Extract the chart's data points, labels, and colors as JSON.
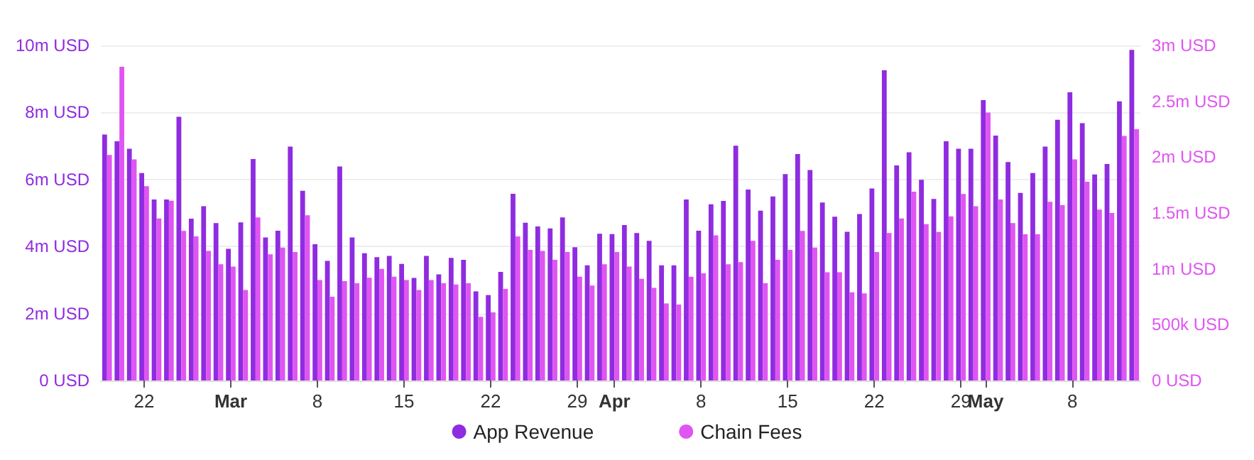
{
  "chart_data": {
    "type": "bar",
    "categories": [
      null,
      null,
      null,
      "22",
      null,
      null,
      null,
      null,
      null,
      null,
      "Mar",
      null,
      null,
      null,
      null,
      null,
      null,
      "8",
      null,
      null,
      null,
      null,
      null,
      null,
      "15",
      null,
      null,
      null,
      null,
      null,
      null,
      "22",
      null,
      null,
      null,
      null,
      null,
      null,
      "29",
      null,
      null,
      "Apr",
      null,
      null,
      null,
      null,
      null,
      null,
      "8",
      null,
      null,
      null,
      null,
      null,
      null,
      "15",
      null,
      null,
      null,
      null,
      null,
      null,
      "22",
      null,
      null,
      null,
      null,
      null,
      null,
      "29",
      null,
      "May",
      null,
      null,
      null,
      null,
      null,
      null,
      "8",
      null,
      null,
      null,
      null,
      null
    ],
    "series": [
      {
        "name": "App Revenue",
        "color": "#8f2ce0",
        "values": [
          7.34,
          7.14,
          6.92,
          6.19,
          5.4,
          5.4,
          7.87,
          4.83,
          5.2,
          4.7,
          3.93,
          4.72,
          6.61,
          4.27,
          4.47,
          6.98,
          5.66,
          4.07,
          3.57,
          6.39,
          4.27,
          3.8,
          3.68,
          3.72,
          3.48,
          3.06,
          3.72,
          3.17,
          3.66,
          3.6,
          2.66,
          2.55,
          3.24,
          5.57,
          4.71,
          4.6,
          4.54,
          4.87,
          3.98,
          3.44,
          4.38,
          4.37,
          4.64,
          4.4,
          4.17,
          3.44,
          3.44,
          5.4,
          4.47,
          5.26,
          5.36,
          7.01,
          5.7,
          5.07,
          5.49,
          6.16,
          6.76,
          6.28,
          5.31,
          4.89,
          4.44,
          4.97,
          5.73,
          9.26,
          6.42,
          6.81,
          5.99,
          5.42,
          7.14,
          6.92,
          6.92,
          8.37,
          7.31,
          6.52,
          5.6,
          6.19,
          6.98,
          7.78,
          8.6,
          7.68,
          6.15,
          6.46,
          8.33,
          9.87
        ]
      },
      {
        "name": "Chain Fees",
        "color": "#e055f2",
        "axis": "y2",
        "values": [
          2020000,
          2810000,
          1980000,
          1740000,
          1450000,
          1610000,
          1340000,
          1290000,
          1160000,
          1040000,
          1020000,
          810000,
          1460000,
          1130000,
          1190000,
          1150000,
          1480000,
          900000,
          750000,
          890000,
          870000,
          920000,
          1000000,
          930000,
          900000,
          810000,
          900000,
          870000,
          860000,
          870000,
          570000,
          610000,
          820000,
          1290000,
          1170000,
          1160000,
          1080000,
          1150000,
          930000,
          850000,
          1040000,
          1150000,
          1020000,
          910000,
          830000,
          690000,
          680000,
          930000,
          960000,
          1300000,
          1040000,
          1060000,
          1250000,
          870000,
          1080000,
          1170000,
          1340000,
          1190000,
          970000,
          970000,
          790000,
          780000,
          1150000,
          1320000,
          1450000,
          1690000,
          1400000,
          1330000,
          1470000,
          1670000,
          1560000,
          2400000,
          1620000,
          1410000,
          1310000,
          1310000,
          1600000,
          1570000,
          1980000,
          1780000,
          1530000,
          1500000,
          2190000,
          2250000
        ]
      }
    ],
    "ylim": [
      0,
      10
    ],
    "yticks": [
      {
        "value": 0,
        "label": "0 USD"
      },
      {
        "value": 2,
        "label": "2m USD"
      },
      {
        "value": 4,
        "label": "4m USD"
      },
      {
        "value": 6,
        "label": "6m USD"
      },
      {
        "value": 8,
        "label": "8m USD"
      },
      {
        "value": 10,
        "label": "10m USD"
      }
    ],
    "y2lim": [
      0,
      3000000
    ],
    "y2ticks": [
      {
        "value": 0,
        "label": "0 USD"
      },
      {
        "value": 500000,
        "label": "500k USD"
      },
      {
        "value": 1000000,
        "label": "1m USD"
      },
      {
        "value": 1500000,
        "label": "1.5m USD"
      },
      {
        "value": 2000000,
        "label": "2m USD"
      },
      {
        "value": 2500000,
        "label": "2.5m USD"
      },
      {
        "value": 3000000,
        "label": "3m USD"
      }
    ],
    "grid": "y",
    "legend": "bottom"
  }
}
